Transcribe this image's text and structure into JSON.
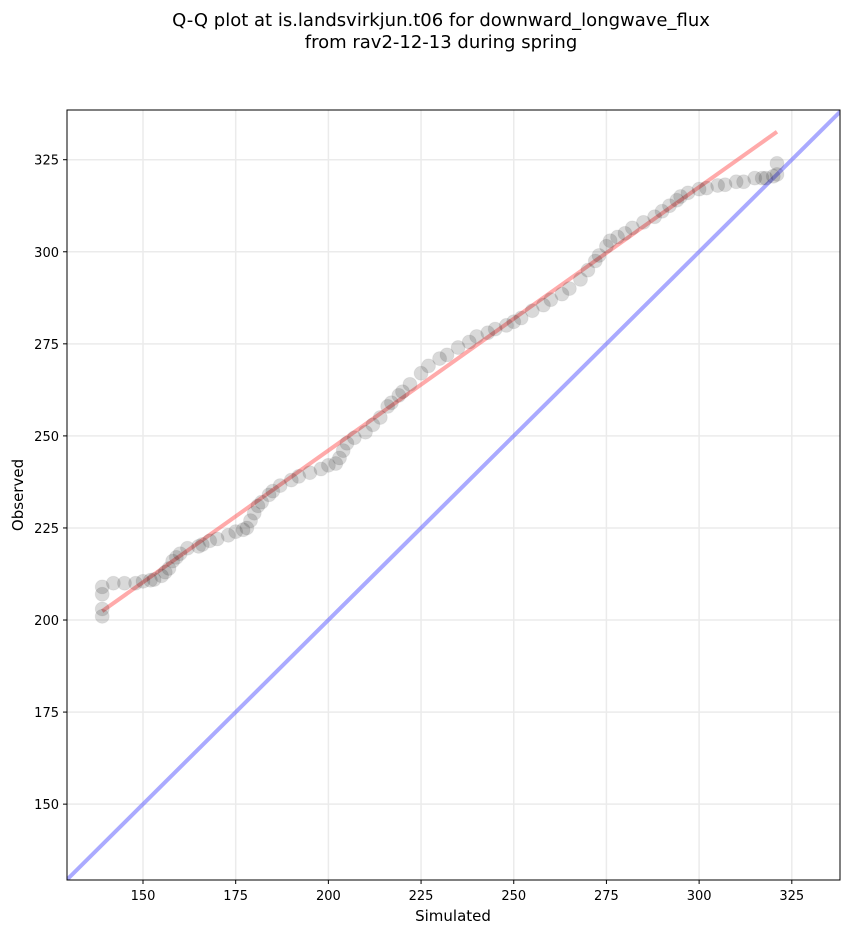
{
  "chart_data": {
    "type": "scatter",
    "title_line1": "Q-Q plot at is.landsvirkjun.t06 for downward_longwave_flux",
    "title_line2": "from rav2-12-13 during spring",
    "xlabel": "Simulated",
    "ylabel": "Observed",
    "xlim": [
      129.5,
      338
    ],
    "ylim": [
      129.4,
      338.5
    ],
    "xticks": [
      150,
      175,
      200,
      225,
      250,
      275,
      300,
      325
    ],
    "yticks": [
      150,
      175,
      200,
      225,
      250,
      275,
      300,
      325
    ],
    "grid": true,
    "points": [
      [
        139,
        201
      ],
      [
        139,
        203
      ],
      [
        139,
        207
      ],
      [
        139,
        209
      ],
      [
        142,
        210
      ],
      [
        145,
        210
      ],
      [
        148,
        210
      ],
      [
        150,
        210.5
      ],
      [
        152,
        210.8
      ],
      [
        153,
        211
      ],
      [
        155,
        212
      ],
      [
        156,
        213
      ],
      [
        157,
        214
      ],
      [
        158,
        216
      ],
      [
        159,
        217
      ],
      [
        160,
        218
      ],
      [
        162,
        219.5
      ],
      [
        165,
        220
      ],
      [
        166,
        220.5
      ],
      [
        168,
        221.5
      ],
      [
        170,
        222
      ],
      [
        173,
        223
      ],
      [
        175,
        224
      ],
      [
        177,
        224.5
      ],
      [
        178,
        225
      ],
      [
        179,
        227
      ],
      [
        180,
        229
      ],
      [
        181,
        231
      ],
      [
        182,
        232
      ],
      [
        184,
        234
      ],
      [
        185,
        235
      ],
      [
        187,
        236.5
      ],
      [
        190,
        238
      ],
      [
        192,
        239
      ],
      [
        195,
        240
      ],
      [
        198,
        241
      ],
      [
        200,
        242
      ],
      [
        202,
        242.5
      ],
      [
        203,
        244
      ],
      [
        204,
        246
      ],
      [
        205,
        248
      ],
      [
        207,
        249.5
      ],
      [
        210,
        251
      ],
      [
        212,
        253
      ],
      [
        214,
        255
      ],
      [
        216,
        258
      ],
      [
        217,
        259
      ],
      [
        219,
        261
      ],
      [
        220,
        262
      ],
      [
        222,
        264
      ],
      [
        225,
        267
      ],
      [
        227,
        269
      ],
      [
        230,
        271
      ],
      [
        232,
        272
      ],
      [
        235,
        274
      ],
      [
        238,
        275.5
      ],
      [
        240,
        277
      ],
      [
        243,
        278
      ],
      [
        245,
        279
      ],
      [
        248,
        280
      ],
      [
        250,
        281
      ],
      [
        252,
        282
      ],
      [
        255,
        284
      ],
      [
        258,
        285.5
      ],
      [
        260,
        287
      ],
      [
        263,
        288.5
      ],
      [
        265,
        290
      ],
      [
        268,
        292.5
      ],
      [
        270,
        295
      ],
      [
        272,
        297.5
      ],
      [
        273,
        299
      ],
      [
        275,
        301.5
      ],
      [
        276,
        303
      ],
      [
        278,
        304
      ],
      [
        280,
        305
      ],
      [
        282,
        306.5
      ],
      [
        285,
        308
      ],
      [
        288,
        309.5
      ],
      [
        290,
        311
      ],
      [
        292,
        312.5
      ],
      [
        294,
        314
      ],
      [
        295,
        315
      ],
      [
        297,
        316
      ],
      [
        300,
        317
      ],
      [
        302,
        317.3
      ],
      [
        305,
        318
      ],
      [
        307,
        318.2
      ],
      [
        310,
        319
      ],
      [
        312,
        319
      ],
      [
        315,
        320
      ],
      [
        317,
        320
      ],
      [
        318,
        320
      ],
      [
        320,
        320.5
      ],
      [
        321,
        321
      ],
      [
        321,
        324
      ]
    ],
    "fit_line": {
      "x": [
        139,
        321
      ],
      "y": [
        202.4,
        332.6
      ],
      "color": "#ff5555"
    },
    "identity_line": {
      "color": "#5555ff"
    },
    "point_color": "#000000"
  }
}
